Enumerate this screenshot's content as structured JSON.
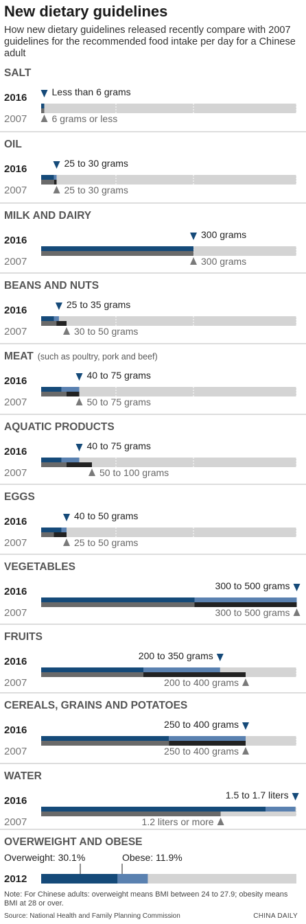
{
  "title": "New dietary guidelines",
  "subtitle": "How new dietary guidelines released recently compare with 2007 guidelines for the recommended food intake per day for a Chinese adult",
  "colors": {
    "new_dark": "#154a79",
    "new_light": "#5a81b0",
    "old_gray": "#6a6a6a",
    "old_black": "#222222",
    "track": "#d4d4d4",
    "marker_new": "#154a79",
    "marker_old": "#7a7a7a"
  },
  "chart_data": [
    {
      "type": "bar",
      "category": "SALT",
      "note": "",
      "year_new": "2016",
      "year_old": "2007",
      "new_min": null,
      "new_max": 6,
      "new_label": "Less than 6 grams",
      "old_min": null,
      "old_max": 6,
      "old_label": "6 grams or less"
    },
    {
      "type": "bar",
      "category": "OIL",
      "note": "",
      "year_new": "2016",
      "year_old": "2007",
      "new_min": 25,
      "new_max": 30,
      "new_label": "25 to 30 grams",
      "old_min": 25,
      "old_max": 30,
      "old_label": "25 to 30 grams"
    },
    {
      "type": "bar",
      "category": "MILK AND DAIRY",
      "note": "",
      "year_new": "2016",
      "year_old": "2007",
      "new_min": 300,
      "new_max": 300,
      "new_label": "300 grams",
      "old_min": 300,
      "old_max": 300,
      "old_label": "300 grams"
    },
    {
      "type": "bar",
      "category": "BEANS AND NUTS",
      "note": "",
      "year_new": "2016",
      "year_old": "2007",
      "new_min": 25,
      "new_max": 35,
      "new_label": "25 to 35 grams",
      "old_min": 30,
      "old_max": 50,
      "old_label": "30 to 50 grams"
    },
    {
      "type": "bar",
      "category": "MEAT",
      "note": "(such as poultry, pork and beef)",
      "year_new": "2016",
      "year_old": "2007",
      "new_min": 40,
      "new_max": 75,
      "new_label": "40 to 75 grams",
      "old_min": 50,
      "old_max": 75,
      "old_label": "50 to 75 grams"
    },
    {
      "type": "bar",
      "category": "AQUATIC PRODUCTS",
      "note": "",
      "year_new": "2016",
      "year_old": "2007",
      "new_min": 40,
      "new_max": 75,
      "new_label": "40 to 75 grams",
      "old_min": 50,
      "old_max": 100,
      "old_label": "50 to 100 grams"
    },
    {
      "type": "bar",
      "category": "EGGS",
      "note": "",
      "year_new": "2016",
      "year_old": "2007",
      "new_min": 40,
      "new_max": 50,
      "new_label": "40 to 50 grams",
      "old_min": 25,
      "old_max": 50,
      "old_label": "25 to 50 grams"
    },
    {
      "type": "bar",
      "category": "VEGETABLES",
      "note": "",
      "year_new": "2016",
      "year_old": "2007",
      "new_min": 300,
      "new_max": 500,
      "new_label": "300 to 500 grams",
      "old_min": 300,
      "old_max": 500,
      "old_label": "300 to 500 grams"
    },
    {
      "type": "bar",
      "category": "FRUITS",
      "note": "",
      "year_new": "2016",
      "year_old": "2007",
      "new_min": 200,
      "new_max": 350,
      "new_label": "200 to 350 grams",
      "old_min": 200,
      "old_max": 400,
      "old_label": "200 to 400 grams"
    },
    {
      "type": "bar",
      "category": "CEREALS, GRAINS AND POTATOES",
      "note": "",
      "year_new": "2016",
      "year_old": "2007",
      "new_min": 250,
      "new_max": 400,
      "new_label": "250 to 400 grams",
      "old_min": 250,
      "old_max": 400,
      "old_label": "250 to 400 grams"
    },
    {
      "type": "bar",
      "category": "WATER",
      "note": "",
      "year_new": "2016",
      "year_old": "2007",
      "new_min": 1.5,
      "new_max": 1.7,
      "new_label": "1.5 to 1.7 liters",
      "old_min": null,
      "old_max": 1.2,
      "old_label": "1.2 liters or more"
    },
    {
      "type": "bar",
      "category": "OVERWEIGHT AND OBESE",
      "note": "",
      "year": "2012",
      "series": [
        {
          "name": "Overweight",
          "value": 30.1,
          "label": "Overweight: 30.1%"
        },
        {
          "name": "Obese",
          "value": 11.9,
          "label": "Obese: 11.9%"
        }
      ]
    }
  ],
  "note": "Note: For Chinese adults: overweight means BMI between 24 to 27.9; obesity means BMI at 28 or over.",
  "source": "Source: National Health and Family Planning Commission",
  "credit": "CHINA DAILY"
}
